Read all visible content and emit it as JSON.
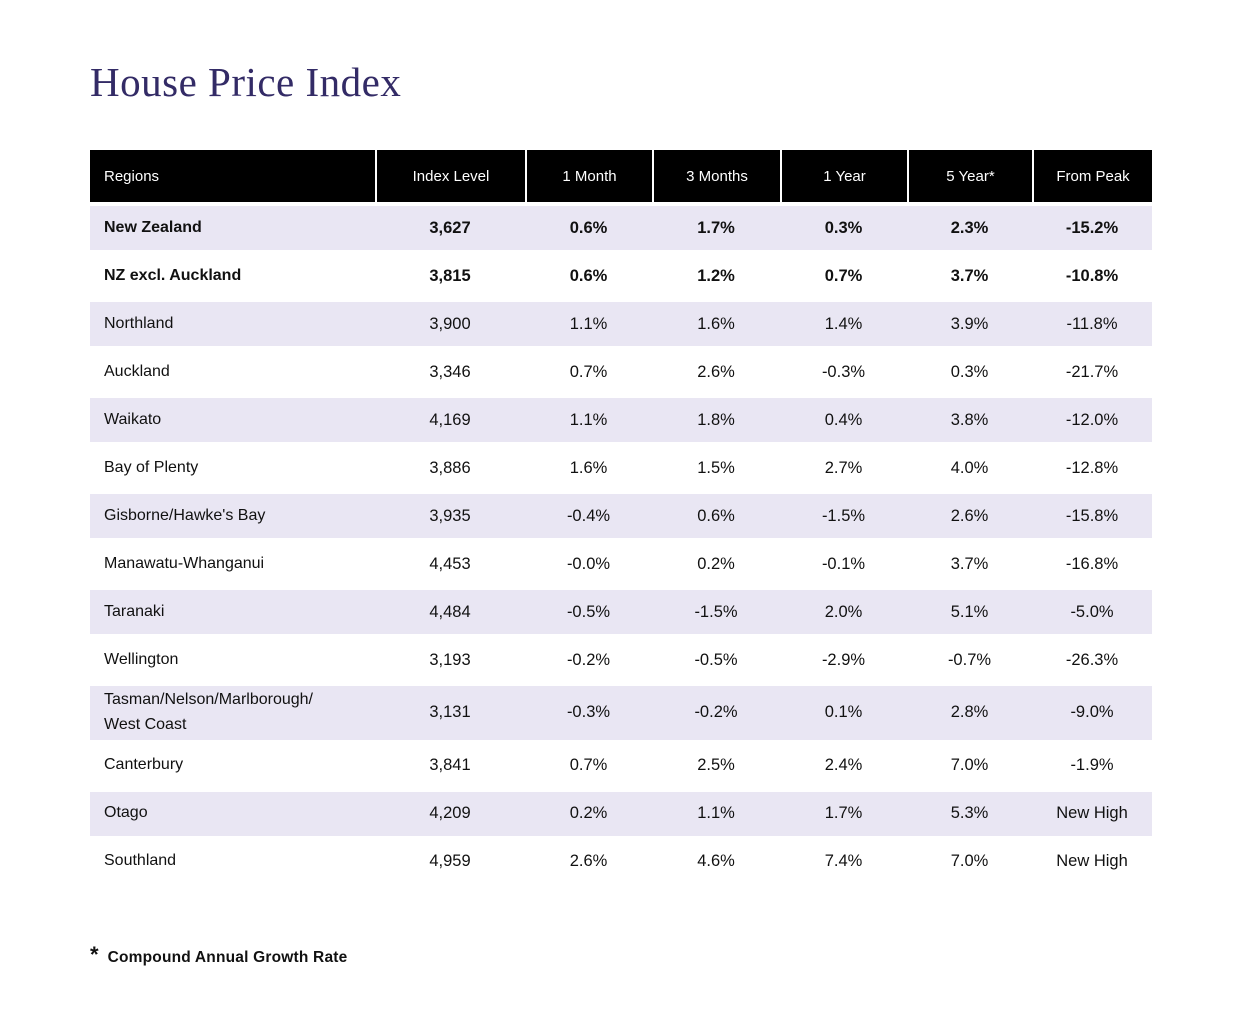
{
  "chart_data": {
    "type": "table",
    "title": "House Price Index",
    "columns": [
      "Regions",
      "Index Level",
      "1 Month",
      "3 Months",
      "1 Year",
      "5 Year*",
      "From Peak"
    ],
    "rows": [
      {
        "region": "New Zealand",
        "bold": true,
        "values": [
          "3,627",
          "0.6%",
          "1.7%",
          "0.3%",
          "2.3%",
          "-15.2%"
        ]
      },
      {
        "region": "NZ excl. Auckland",
        "bold": true,
        "values": [
          "3,815",
          "0.6%",
          "1.2%",
          "0.7%",
          "3.7%",
          "-10.8%"
        ]
      },
      {
        "region": "Northland",
        "bold": false,
        "values": [
          "3,900",
          "1.1%",
          "1.6%",
          "1.4%",
          "3.9%",
          "-11.8%"
        ]
      },
      {
        "region": "Auckland",
        "bold": false,
        "values": [
          "3,346",
          "0.7%",
          "2.6%",
          "-0.3%",
          "0.3%",
          "-21.7%"
        ]
      },
      {
        "region": "Waikato",
        "bold": false,
        "values": [
          "4,169",
          "1.1%",
          "1.8%",
          "0.4%",
          "3.8%",
          "-12.0%"
        ]
      },
      {
        "region": "Bay of Plenty",
        "bold": false,
        "values": [
          "3,886",
          "1.6%",
          "1.5%",
          "2.7%",
          "4.0%",
          "-12.8%"
        ]
      },
      {
        "region": "Gisborne/Hawke's Bay",
        "bold": false,
        "values": [
          "3,935",
          "-0.4%",
          "0.6%",
          "-1.5%",
          "2.6%",
          "-15.8%"
        ]
      },
      {
        "region": "Manawatu-Whanganui",
        "bold": false,
        "values": [
          "4,453",
          "-0.0%",
          "0.2%",
          "-0.1%",
          "3.7%",
          "-16.8%"
        ]
      },
      {
        "region": "Taranaki",
        "bold": false,
        "values": [
          "4,484",
          "-0.5%",
          "-1.5%",
          "2.0%",
          "5.1%",
          "-5.0%"
        ]
      },
      {
        "region": "Wellington",
        "bold": false,
        "values": [
          "3,193",
          "-0.2%",
          "-0.5%",
          "-2.9%",
          "-0.7%",
          "-26.3%"
        ]
      },
      {
        "region": "Tasman/Nelson/Marlborough/\nWest Coast",
        "bold": false,
        "values": [
          "3,131",
          "-0.3%",
          "-0.2%",
          "0.1%",
          "2.8%",
          "-9.0%"
        ]
      },
      {
        "region": "Canterbury",
        "bold": false,
        "values": [
          "3,841",
          "0.7%",
          "2.5%",
          "2.4%",
          "7.0%",
          "-1.9%"
        ]
      },
      {
        "region": "Otago",
        "bold": false,
        "values": [
          "4,209",
          "0.2%",
          "1.1%",
          "1.7%",
          "5.3%",
          "New High"
        ]
      },
      {
        "region": "Southland",
        "bold": false,
        "values": [
          "4,959",
          "2.6%",
          "4.6%",
          "7.4%",
          "7.0%",
          "New High"
        ]
      }
    ],
    "footnote": {
      "symbol": "*",
      "text": "Compound Annual Growth Rate"
    }
  },
  "colors": {
    "title": "#332b66",
    "header_bg": "#000000",
    "header_text": "#ffffff",
    "row_stripe": "#e9e6f3",
    "body_text": "#111111"
  }
}
